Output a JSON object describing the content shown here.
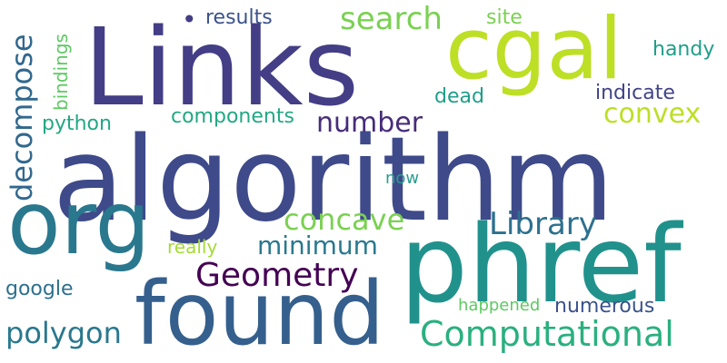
{
  "words": {
    "algorithm": {
      "text": "algorithm",
      "color": "#3e4a89"
    },
    "links": {
      "text": "Links",
      "color": "#433e85"
    },
    "cgal": {
      "text": "cgal",
      "color": "#bddf26"
    },
    "found": {
      "text": "found",
      "color": "#35608d"
    },
    "phref": {
      "text": "phref",
      "color": "#21918c"
    },
    "org": {
      "text": "org",
      "color": "#2a788e"
    },
    "computational": {
      "text": "Computational",
      "color": "#2ab07f"
    },
    "geometry": {
      "text": "Geometry",
      "color": "#440154"
    },
    "library": {
      "text": "Library",
      "color": "#2d708e"
    },
    "concave": {
      "text": "concave",
      "color": "#7ad151"
    },
    "convex": {
      "text": "convex",
      "color": "#bddf26"
    },
    "search": {
      "text": "search",
      "color": "#7ad151"
    },
    "number": {
      "text": "number",
      "color": "#472c7a"
    },
    "minimum": {
      "text": "minimum",
      "color": "#2a788e"
    },
    "polygon": {
      "text": "polygon",
      "color": "#2a788e"
    },
    "decompose": {
      "text": "decompose",
      "color": "#31688e"
    },
    "numerous": {
      "text": "numerous",
      "color": "#3b528b"
    },
    "components": {
      "text": "components",
      "color": "#22a884"
    },
    "results": {
      "text": "results",
      "color": "#3b528b"
    },
    "site": {
      "text": "site",
      "color": "#7ad151"
    },
    "handy": {
      "text": "handy",
      "color": "#1f9e89"
    },
    "indicate": {
      "text": "indicate",
      "color": "#414487"
    },
    "dead": {
      "text": "dead",
      "color": "#1f9e89"
    },
    "python": {
      "text": "python",
      "color": "#22a884"
    },
    "bindings": {
      "text": "bindings",
      "color": "#5ec962"
    },
    "really": {
      "text": "really",
      "color": "#a5db36"
    },
    "now": {
      "text": "now",
      "color": "#2a9d8f"
    },
    "google": {
      "text": "google",
      "color": "#2d708e"
    },
    "happened": {
      "text": "happened",
      "color": "#5ec962"
    },
    "dot": {
      "text": "•",
      "color": "#433e85"
    }
  }
}
